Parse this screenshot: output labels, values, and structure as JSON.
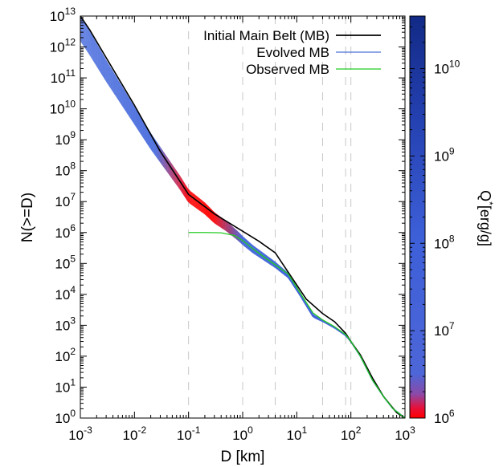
{
  "chart_data": {
    "type": "line",
    "xlabel": "D [km]",
    "ylabel": "N(>=D)",
    "xscale": "log",
    "yscale": "log",
    "xlim": [
      0.001,
      1000
    ],
    "ylim": [
      1,
      10000000000000
    ],
    "x_ticks": [
      {
        "base": "10",
        "exp": "-3",
        "value": 0.001
      },
      {
        "base": "10",
        "exp": "-2",
        "value": 0.01
      },
      {
        "base": "10",
        "exp": "-1",
        "value": 0.1
      },
      {
        "base": "10",
        "exp": "0",
        "value": 1
      },
      {
        "base": "10",
        "exp": "1",
        "value": 10
      },
      {
        "base": "10",
        "exp": "2",
        "value": 100
      },
      {
        "base": "10",
        "exp": "3",
        "value": 1000
      }
    ],
    "y_ticks": [
      {
        "base": "10",
        "exp": "0",
        "value": 1
      },
      {
        "base": "10",
        "exp": "1",
        "value": 10
      },
      {
        "base": "10",
        "exp": "2",
        "value": 100
      },
      {
        "base": "10",
        "exp": "3",
        "value": 1000
      },
      {
        "base": "10",
        "exp": "4",
        "value": 10000
      },
      {
        "base": "10",
        "exp": "5",
        "value": 100000
      },
      {
        "base": "10",
        "exp": "6",
        "value": 1000000
      },
      {
        "base": "10",
        "exp": "7",
        "value": 10000000
      },
      {
        "base": "10",
        "exp": "8",
        "value": 100000000
      },
      {
        "base": "10",
        "exp": "9",
        "value": 1000000000
      },
      {
        "base": "10",
        "exp": "10",
        "value": 10000000000
      },
      {
        "base": "10",
        "exp": "11",
        "value": 100000000000
      },
      {
        "base": "10",
        "exp": "12",
        "value": 1000000000000
      },
      {
        "base": "10",
        "exp": "13",
        "value": 10000000000000
      }
    ],
    "grid": "dashed vertical lines",
    "vertical_dashed_x": [
      0.1,
      1,
      4,
      30,
      80,
      100
    ],
    "legend_position": "top-right",
    "legend": [
      {
        "label": "Initial Main Belt (MB)",
        "color": "#000000"
      },
      {
        "label": "Evolved MB",
        "color": "#4a6fd6"
      },
      {
        "label": "Observed MB",
        "color": "#22cc22"
      }
    ],
    "series": [
      {
        "name": "Initial Main Belt (MB)",
        "color": "#000000",
        "x": [
          0.001,
          0.0015,
          0.003,
          0.01,
          0.03,
          0.1,
          0.3,
          1,
          2,
          4,
          8,
          15,
          30,
          50,
          80,
          100,
          150,
          250,
          400,
          700,
          1000
        ],
        "y": [
          10000000000000,
          3500000000000,
          450000000000,
          13000000000,
          420000000,
          17000000,
          4000000,
          1100000,
          520000,
          220000,
          36000,
          7000,
          2400,
          1300,
          550,
          300,
          110,
          20,
          5,
          1.5,
          1
        ]
      },
      {
        "name": "Observed MB",
        "color": "#22cc22",
        "x": [
          0.1,
          0.2,
          0.4,
          0.7,
          1,
          1.5,
          2.5,
          4,
          7,
          12,
          20,
          30,
          50,
          80,
          100,
          150,
          250,
          400,
          600,
          1000
        ],
        "y": [
          1000000,
          1000000,
          980000,
          800000,
          550000,
          310000,
          160000,
          90000,
          45000,
          10000,
          2500,
          1500,
          900,
          500,
          300,
          100,
          17,
          5,
          2,
          1
        ]
      },
      {
        "name": "Evolved MB",
        "color_scale": "Q*",
        "x": [
          0.001,
          0.0015,
          0.003,
          0.01,
          0.02,
          0.04,
          0.07,
          0.1,
          0.2,
          0.3,
          0.5,
          0.8,
          1,
          1.5,
          2.5,
          4,
          7,
          12,
          20,
          30,
          50,
          80,
          100,
          150,
          250,
          400,
          600,
          1000
        ],
        "y": [
          4000000000000,
          1300000000000,
          170000000000,
          6000000000,
          900000000,
          160000000,
          40000000,
          15000000,
          6000000,
          3000000,
          1600000,
          800000,
          550000,
          300000,
          160000,
          90000,
          40000,
          9000,
          2000,
          1400,
          850,
          480,
          300,
          100,
          17,
          5,
          2,
          1
        ]
      }
    ],
    "colorbar": {
      "label_main": "Q",
      "label_sup": "*",
      "label_rest": "[erg/g]",
      "scale": "log",
      "range": [
        1000000,
        40000000000
      ],
      "ticks": [
        {
          "base": "10",
          "exp": "6",
          "value": 1000000
        },
        {
          "base": "10",
          "exp": "7",
          "value": 10000000
        },
        {
          "base": "10",
          "exp": "8",
          "value": 100000000
        },
        {
          "base": "10",
          "exp": "9",
          "value": 1000000000
        },
        {
          "base": "10",
          "exp": "10",
          "value": 10000000000
        }
      ],
      "colors": [
        "#ff0000",
        "#3d6ae0",
        "#16288a"
      ]
    }
  }
}
